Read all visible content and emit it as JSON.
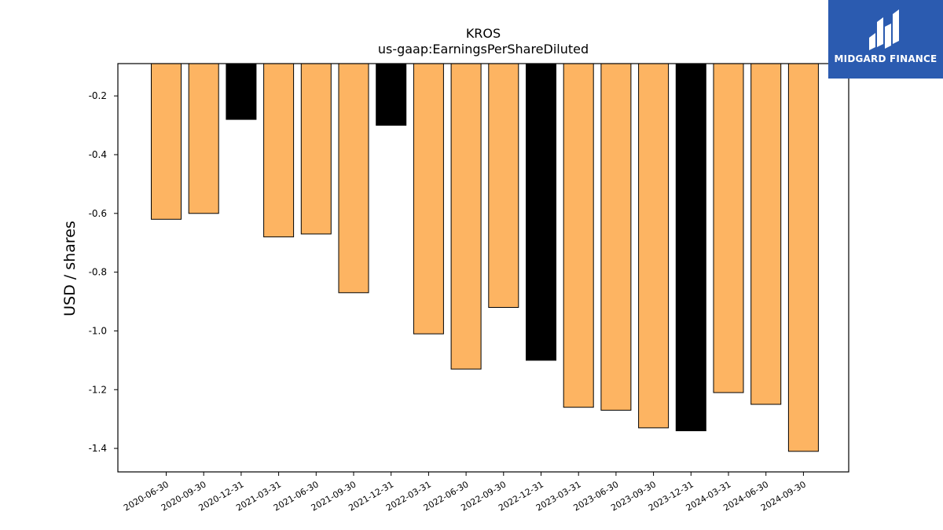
{
  "logo": {
    "text": "MIDGARD FINANCE",
    "bg_color": "#2B5BB0"
  },
  "chart_data": {
    "type": "bar",
    "title": "KROS",
    "subtitle": "us-gaap:EarningsPerShareDiluted",
    "xlabel": "",
    "ylabel": "USD / shares",
    "ylim": [
      -1.48,
      -0.09
    ],
    "yticks": [
      -0.2,
      -0.4,
      -0.6,
      -0.8,
      -1.0,
      -1.2,
      -1.4
    ],
    "ytick_labels": [
      "-0.2",
      "-0.4",
      "-0.6",
      "-0.8",
      "-1.0",
      "-1.2",
      "-1.4"
    ],
    "grid": false,
    "categories": [
      "2020-06-30",
      "2020-09-30",
      "2020-12-31",
      "2021-03-31",
      "2021-06-30",
      "2021-09-30",
      "2021-12-31",
      "2022-03-31",
      "2022-06-30",
      "2022-09-30",
      "2022-12-31",
      "2023-03-31",
      "2023-06-30",
      "2023-09-30",
      "2023-12-31",
      "2024-03-31",
      "2024-06-30",
      "2024-09-30"
    ],
    "values": [
      -0.62,
      -0.6,
      -0.28,
      -0.68,
      -0.67,
      -0.87,
      -0.3,
      -1.01,
      -1.13,
      -0.92,
      -1.1,
      -1.26,
      -1.27,
      -1.33,
      -1.34,
      -1.21,
      -1.25,
      -1.41
    ],
    "bar_colors": [
      "#FDB462",
      "#FDB462",
      "#000000",
      "#FDB462",
      "#FDB462",
      "#FDB462",
      "#000000",
      "#FDB462",
      "#FDB462",
      "#FDB462",
      "#000000",
      "#FDB462",
      "#FDB462",
      "#FDB462",
      "#000000",
      "#FDB462",
      "#FDB462",
      "#FDB462"
    ]
  }
}
